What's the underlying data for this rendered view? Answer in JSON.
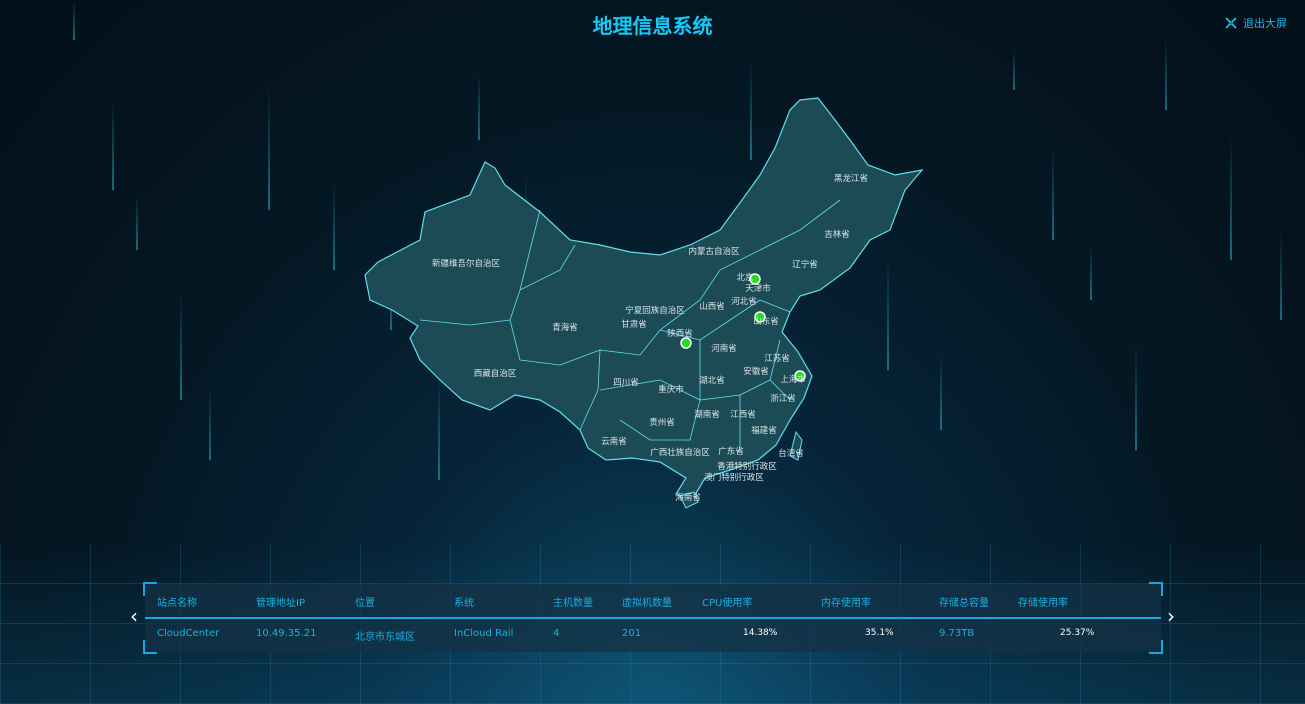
{
  "header": {
    "title": "地理信息系统",
    "exit_label": "退出大屏",
    "exit_icon": "fullscreen-exit-icon"
  },
  "map": {
    "provinces": [
      "新疆维吾尔自治区",
      "西藏自治区",
      "青海省",
      "甘肃省",
      "宁夏回族自治区",
      "内蒙古自治区",
      "黑龙江省",
      "吉林省",
      "辽宁省",
      "北京",
      "天津市",
      "河北省",
      "山西省",
      "山东省",
      "陕西省",
      "河南省",
      "江苏省",
      "安徽省",
      "上海市",
      "湖北省",
      "重庆市",
      "四川省",
      "浙江省",
      "湖南省",
      "江西省",
      "贵州省",
      "福建省",
      "云南省",
      "台湾省",
      "广西壮族自治区",
      "广东省",
      "香港特别行政区",
      "澳门特别行政区",
      "海南省"
    ],
    "marker_color": "#22dd22",
    "fill_color": "#1c4a55",
    "border_color": "#5ee0f0"
  },
  "table": {
    "headers": [
      "站点名称",
      "管理地址IP",
      "位置",
      "系统",
      "主机数量",
      "虚拟机数量",
      "CPU使用率",
      "内存使用率",
      "存储总容量",
      "存储使用率"
    ],
    "rows": [
      [
        "CloudCenter",
        "10.49.35.21",
        "北京市东城区",
        "InCloud Rail",
        "4",
        "201",
        "14.38%",
        "35.1%",
        "9.73TB",
        "25.37%"
      ]
    ],
    "prev_icon": "chevron-left-icon",
    "next_icon": "chevron-right-icon"
  }
}
